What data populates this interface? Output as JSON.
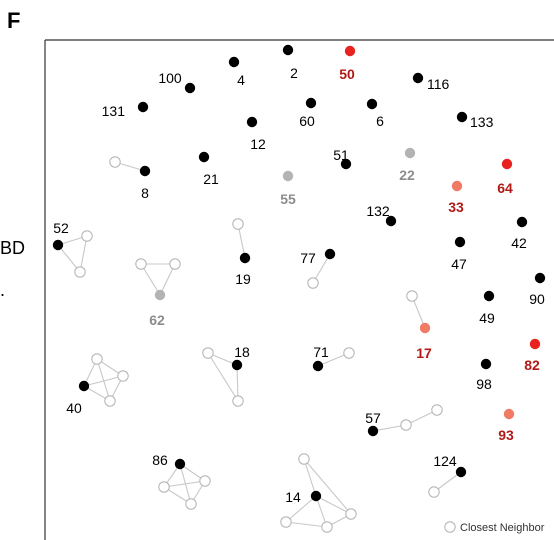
{
  "panel_letter": "F",
  "side_fragments": [
    "BD",
    "."
  ],
  "legend": {
    "label": "Closest Neighbor"
  },
  "colors": {
    "black": "#000000",
    "gray": "#b3b3b3",
    "gray_text": "#8c8c8c",
    "red": "#e8231f",
    "red_text": "#b21a16",
    "salmon": "#f07a63",
    "hollow_stroke": "#b8b8b8",
    "edge": "#c8c8c8"
  },
  "nodes": [
    {
      "id": "100",
      "kind": "black"
    },
    {
      "id": "4",
      "kind": "black"
    },
    {
      "id": "2",
      "kind": "black"
    },
    {
      "id": "50",
      "kind": "red"
    },
    {
      "id": "116",
      "kind": "black"
    },
    {
      "id": "131",
      "kind": "black"
    },
    {
      "id": "60",
      "kind": "black"
    },
    {
      "id": "6",
      "kind": "black"
    },
    {
      "id": "133",
      "kind": "black"
    },
    {
      "id": "12",
      "kind": "black"
    },
    {
      "id": "51",
      "kind": "black"
    },
    {
      "id": "22",
      "kind": "gray"
    },
    {
      "id": "64",
      "kind": "red"
    },
    {
      "id": "8",
      "kind": "black"
    },
    {
      "id": "21",
      "kind": "black"
    },
    {
      "id": "55",
      "kind": "gray"
    },
    {
      "id": "33",
      "kind": "salmon"
    },
    {
      "id": "132",
      "kind": "black"
    },
    {
      "id": "42",
      "kind": "black"
    },
    {
      "id": "52",
      "kind": "black"
    },
    {
      "id": "47",
      "kind": "black"
    },
    {
      "id": "77",
      "kind": "black"
    },
    {
      "id": "19",
      "kind": "black"
    },
    {
      "id": "62",
      "kind": "gray"
    },
    {
      "id": "90",
      "kind": "black"
    },
    {
      "id": "49",
      "kind": "black"
    },
    {
      "id": "17",
      "kind": "salmon"
    },
    {
      "id": "82",
      "kind": "red"
    },
    {
      "id": "18",
      "kind": "black"
    },
    {
      "id": "71",
      "kind": "black"
    },
    {
      "id": "98",
      "kind": "black"
    },
    {
      "id": "40",
      "kind": "black"
    },
    {
      "id": "57",
      "kind": "black"
    },
    {
      "id": "93",
      "kind": "salmon"
    },
    {
      "id": "124",
      "kind": "black"
    },
    {
      "id": "86",
      "kind": "black"
    },
    {
      "id": "14",
      "kind": "black"
    }
  ]
}
